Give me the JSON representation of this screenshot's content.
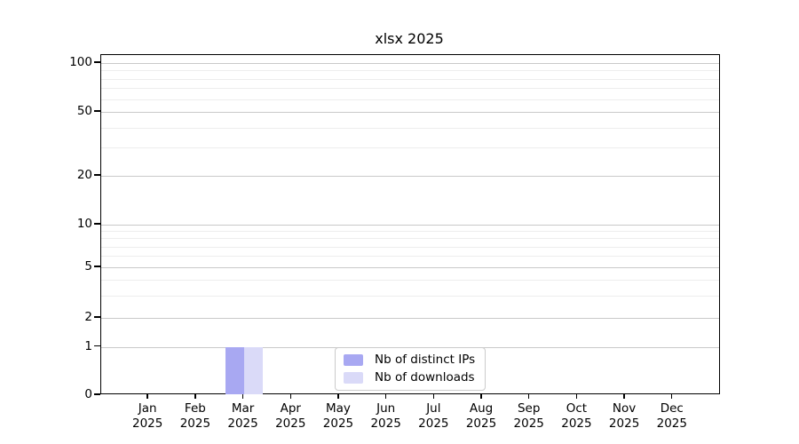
{
  "chart_data": {
    "type": "bar",
    "title": "xlsx 2025",
    "categories": [
      "Jan",
      "Feb",
      "Mar",
      "Apr",
      "May",
      "Jun",
      "Jul",
      "Aug",
      "Sep",
      "Oct",
      "Nov",
      "Dec"
    ],
    "category_year": "2025",
    "series": [
      {
        "name": "Nb of distinct IPs",
        "color": "#a8a8f2",
        "values": [
          0,
          0,
          1,
          0,
          0,
          0,
          0,
          0,
          0,
          0,
          0,
          0
        ]
      },
      {
        "name": "Nb of downloads",
        "color": "#dadaf8",
        "values": [
          0,
          0,
          1,
          0,
          0,
          0,
          0,
          0,
          0,
          0,
          0,
          0
        ]
      }
    ],
    "xlabel": "",
    "ylabel": "",
    "yscale": "symlog",
    "ylim": [
      0,
      112
    ],
    "y_major_ticks": [
      0,
      1,
      2,
      5,
      10,
      20,
      50,
      100
    ],
    "y_minor_ticks": [
      3,
      4,
      6,
      7,
      8,
      9,
      30,
      40,
      60,
      70,
      80,
      90
    ],
    "grid": true,
    "legend_position": "lower center",
    "colors": {
      "axis": "#000000",
      "grid_major": "#c9c9c9",
      "grid_minor": "#ededed",
      "background": "#ffffff",
      "legend_border": "#cbcbcb"
    }
  }
}
